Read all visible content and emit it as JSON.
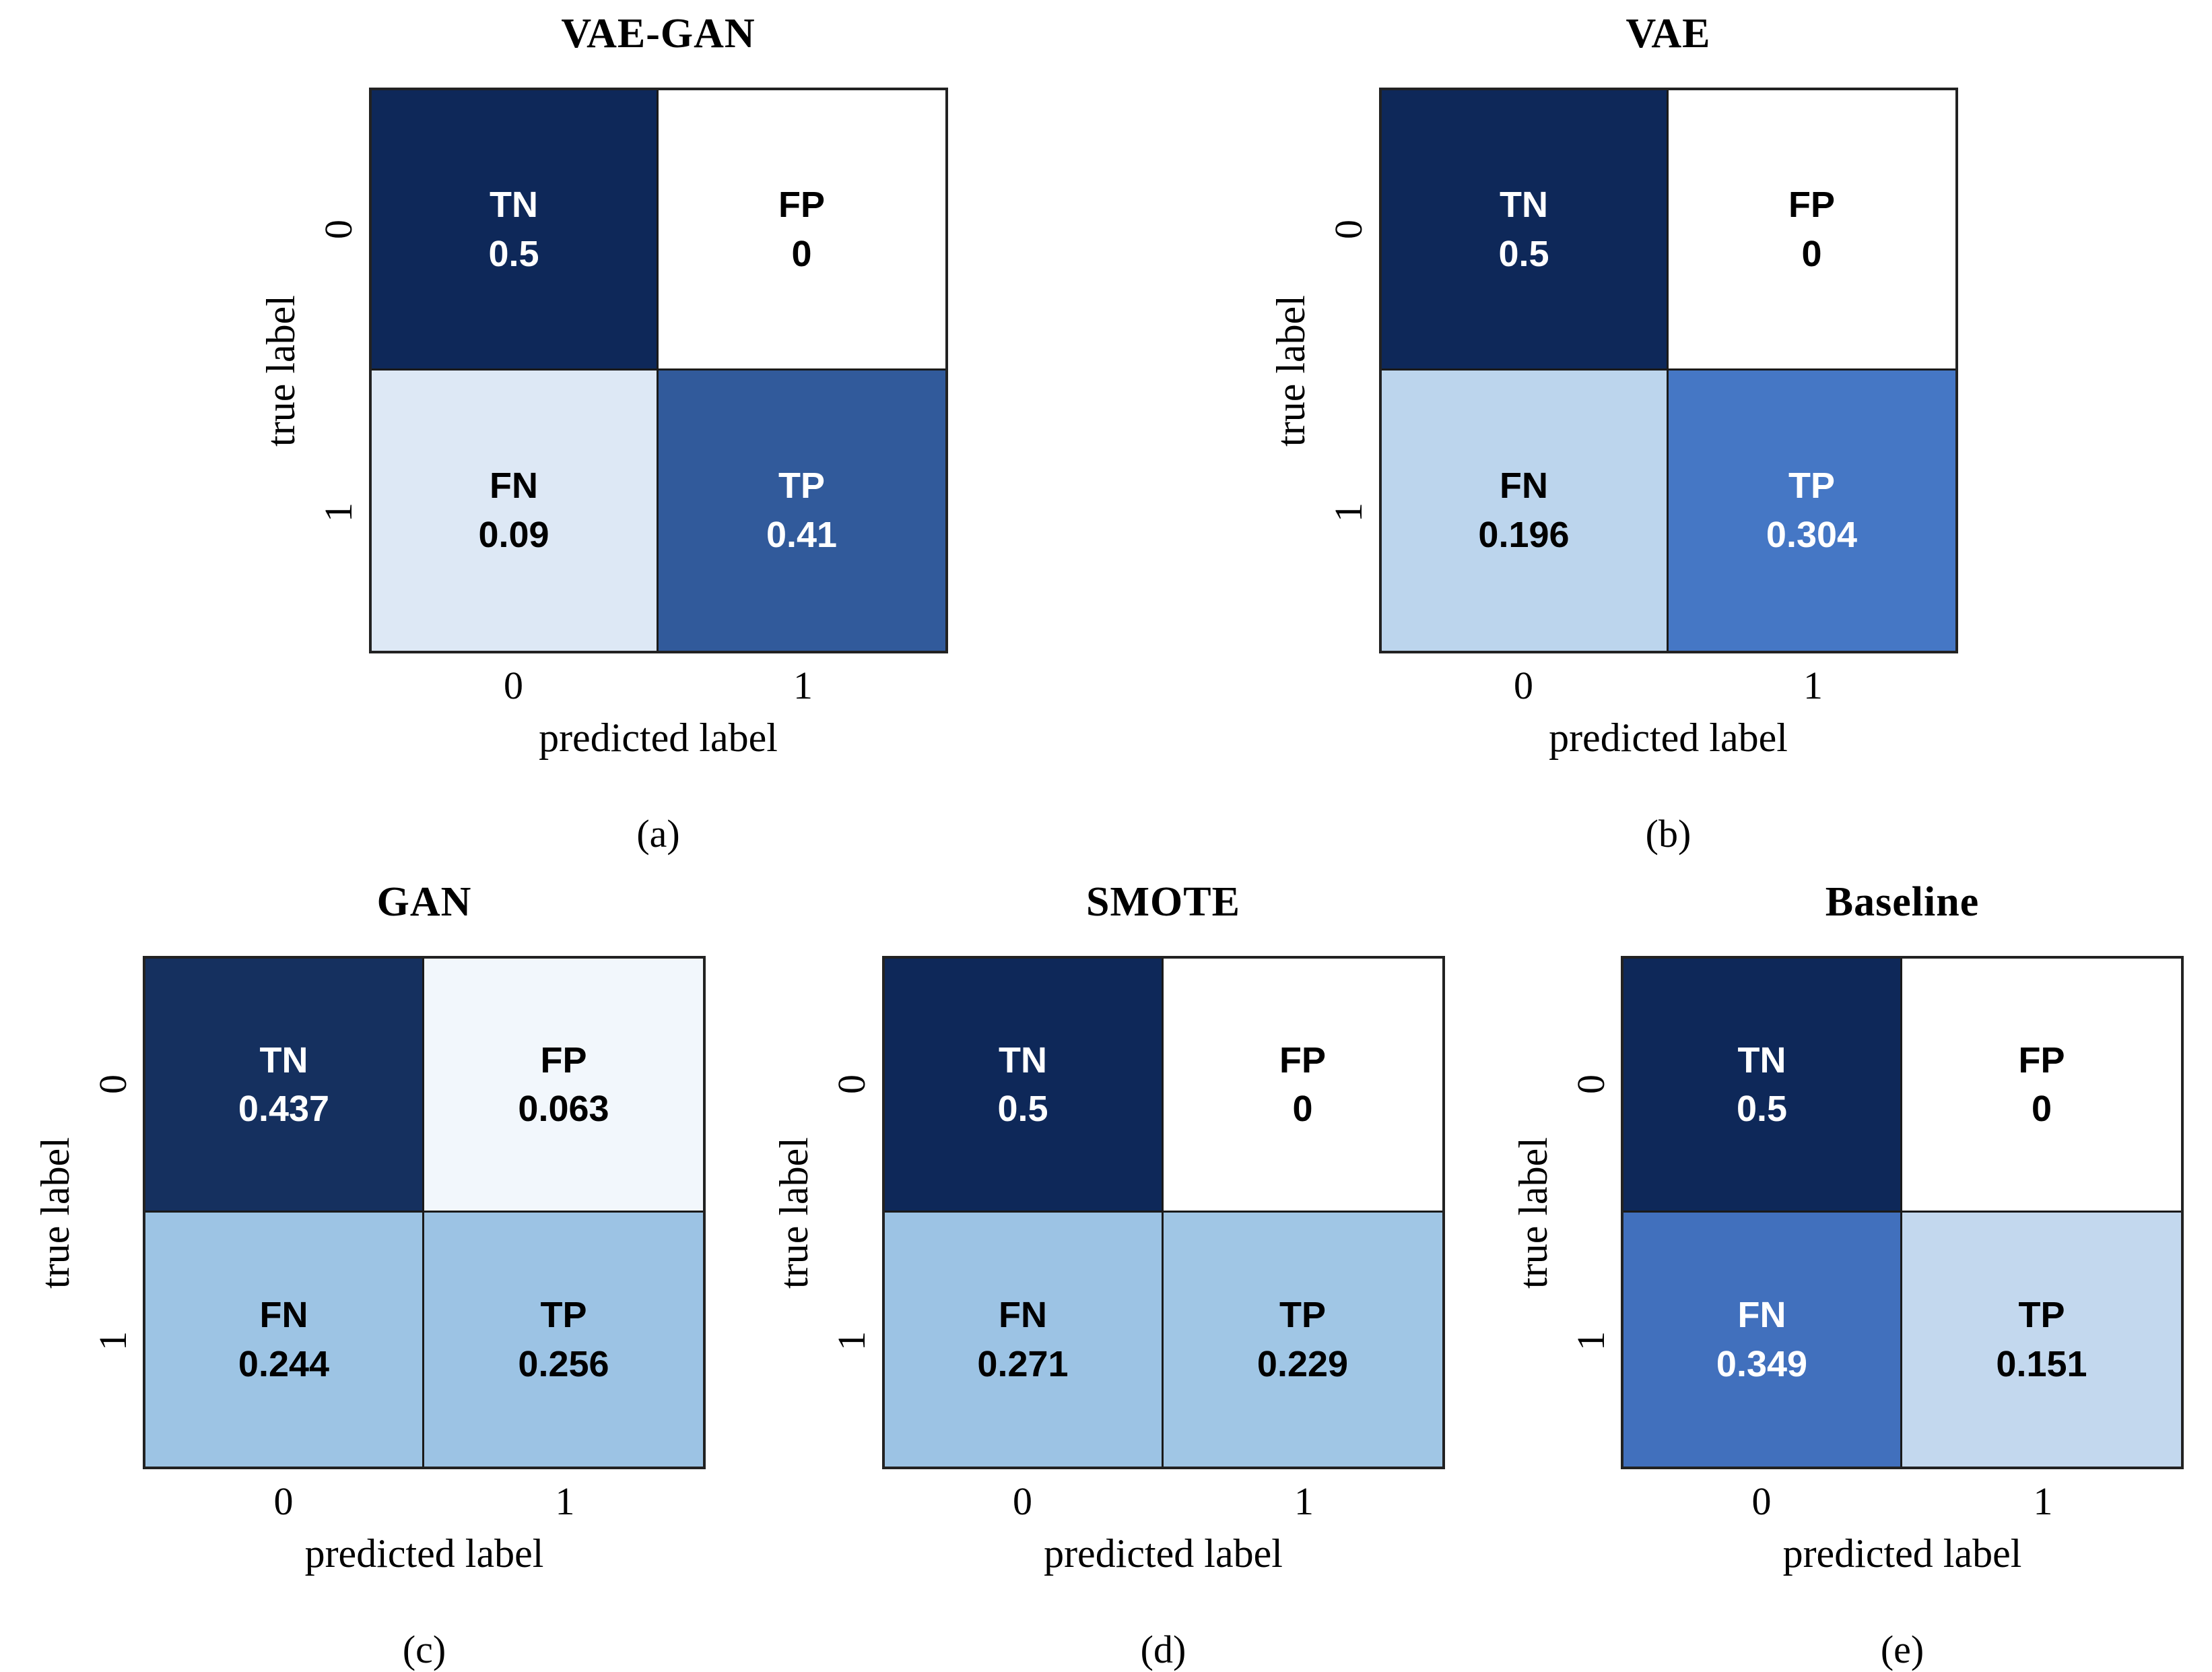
{
  "figure": {
    "xlabel": "predicted label",
    "ylabel": "true label",
    "x_tick_labels": [
      "0",
      "1"
    ],
    "y_tick_labels": [
      "0",
      "1"
    ],
    "grid_line_color": "#1a1a1a",
    "background": "#ffffff"
  },
  "chart_data": [
    {
      "type": "heatmap",
      "id": "a",
      "row": "top",
      "title": "VAE-GAN",
      "caption": "(a)",
      "xlabel": "predicted label",
      "ylabel": "true label",
      "x_ticks": [
        "0",
        "1"
      ],
      "y_ticks": [
        "0",
        "1"
      ],
      "values": [
        [
          0.5,
          0
        ],
        [
          0.09,
          0.41
        ]
      ],
      "cells": [
        {
          "quadrant": "TN",
          "value": 0.5,
          "display": "0.5",
          "bg": "#0e2859",
          "fg": "#ffffff"
        },
        {
          "quadrant": "FP",
          "value": 0,
          "display": "0",
          "bg": "#ffffff",
          "fg": "#000000"
        },
        {
          "quadrant": "FN",
          "value": 0.09,
          "display": "0.09",
          "bg": "#dde8f5",
          "fg": "#000000"
        },
        {
          "quadrant": "TP",
          "value": 0.41,
          "display": "0.41",
          "bg": "#315a9b",
          "fg": "#ffffff"
        }
      ]
    },
    {
      "type": "heatmap",
      "id": "b",
      "row": "top",
      "title": "VAE",
      "caption": "(b)",
      "xlabel": "predicted label",
      "ylabel": "true label",
      "x_ticks": [
        "0",
        "1"
      ],
      "y_ticks": [
        "0",
        "1"
      ],
      "values": [
        [
          0.5,
          0
        ],
        [
          0.196,
          0.304
        ]
      ],
      "cells": [
        {
          "quadrant": "TN",
          "value": 0.5,
          "display": "0.5",
          "bg": "#0e2859",
          "fg": "#ffffff"
        },
        {
          "quadrant": "FP",
          "value": 0,
          "display": "0",
          "bg": "#ffffff",
          "fg": "#000000"
        },
        {
          "quadrant": "FN",
          "value": 0.196,
          "display": "0.196",
          "bg": "#bcd5ed",
          "fg": "#000000"
        },
        {
          "quadrant": "TP",
          "value": 0.304,
          "display": "0.304",
          "bg": "#4577c5",
          "fg": "#ffffff"
        }
      ]
    },
    {
      "type": "heatmap",
      "id": "c",
      "row": "bottom",
      "title": "GAN",
      "caption": "(c)",
      "xlabel": "predicted label",
      "ylabel": "true label",
      "x_ticks": [
        "0",
        "1"
      ],
      "y_ticks": [
        "0",
        "1"
      ],
      "values": [
        [
          0.437,
          0.063
        ],
        [
          0.244,
          0.256
        ]
      ],
      "cells": [
        {
          "quadrant": "TN",
          "value": 0.437,
          "display": "0.437",
          "bg": "#15305f",
          "fg": "#ffffff"
        },
        {
          "quadrant": "FP",
          "value": 0.063,
          "display": "0.063",
          "bg": "#f2f7fc",
          "fg": "#000000"
        },
        {
          "quadrant": "FN",
          "value": 0.244,
          "display": "0.244",
          "bg": "#9dc4e4",
          "fg": "#000000"
        },
        {
          "quadrant": "TP",
          "value": 0.256,
          "display": "0.256",
          "bg": "#9cc3e4",
          "fg": "#000000"
        }
      ]
    },
    {
      "type": "heatmap",
      "id": "d",
      "row": "bottom",
      "title": "SMOTE",
      "caption": "(d)",
      "xlabel": "predicted label",
      "ylabel": "true label",
      "x_ticks": [
        "0",
        "1"
      ],
      "y_ticks": [
        "0",
        "1"
      ],
      "values": [
        [
          0.5,
          0
        ],
        [
          0.271,
          0.229
        ]
      ],
      "cells": [
        {
          "quadrant": "TN",
          "value": 0.5,
          "display": "0.5",
          "bg": "#0e2859",
          "fg": "#ffffff"
        },
        {
          "quadrant": "FP",
          "value": 0,
          "display": "0",
          "bg": "#ffffff",
          "fg": "#000000"
        },
        {
          "quadrant": "FN",
          "value": 0.271,
          "display": "0.271",
          "bg": "#9cc3e4",
          "fg": "#000000"
        },
        {
          "quadrant": "TP",
          "value": 0.229,
          "display": "0.229",
          "bg": "#a0c6e5",
          "fg": "#000000"
        }
      ]
    },
    {
      "type": "heatmap",
      "id": "e",
      "row": "bottom",
      "title": "Baseline",
      "caption": "(e)",
      "xlabel": "predicted label",
      "ylabel": "true label",
      "x_ticks": [
        "0",
        "1"
      ],
      "y_ticks": [
        "0",
        "1"
      ],
      "values": [
        [
          0.5,
          0
        ],
        [
          0.349,
          0.151
        ]
      ],
      "cells": [
        {
          "quadrant": "TN",
          "value": 0.5,
          "display": "0.5",
          "bg": "#0e2859",
          "fg": "#ffffff"
        },
        {
          "quadrant": "FP",
          "value": 0,
          "display": "0",
          "bg": "#ffffff",
          "fg": "#000000"
        },
        {
          "quadrant": "FN",
          "value": 0.349,
          "display": "0.349",
          "bg": "#4170bd",
          "fg": "#ffffff"
        },
        {
          "quadrant": "TP",
          "value": 0.151,
          "display": "0.151",
          "bg": "#c3d8ee",
          "fg": "#000000"
        }
      ]
    }
  ]
}
